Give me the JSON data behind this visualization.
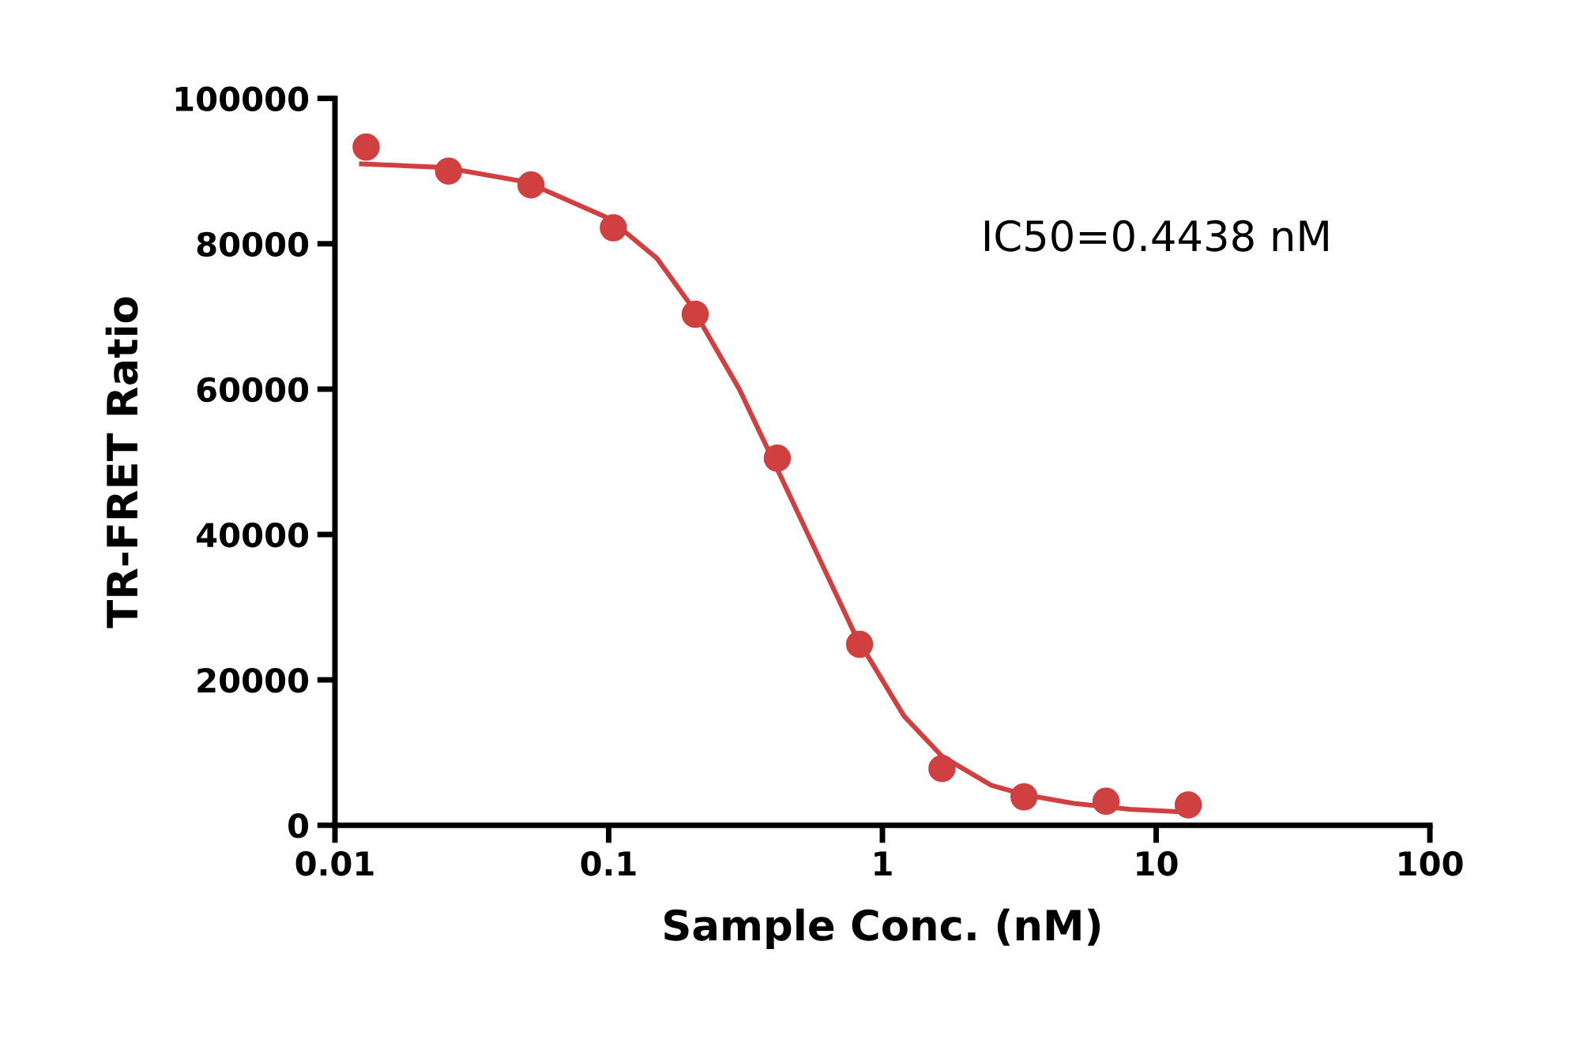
{
  "chart_data": {
    "type": "scatter",
    "xlabel": "Sample Conc. (nM)",
    "ylabel": "TR-FRET Ratio",
    "log": "x",
    "xlim": [
      0.01,
      100
    ],
    "xticks": [
      0.01,
      0.1,
      1,
      10,
      100
    ],
    "ylim": [
      0,
      100000
    ],
    "yticks": [
      0,
      20000,
      40000,
      60000,
      80000,
      100000
    ],
    "grid": false,
    "line_style": "solid",
    "series": [
      {
        "marker": "circle",
        "color": "#d04040",
        "x": [
          0.013,
          0.026,
          0.052,
          0.104,
          0.207,
          0.413,
          0.825,
          1.65,
          3.29,
          6.56,
          13.1
        ],
        "values": [
          93300,
          90000,
          88100,
          82200,
          70300,
          50500,
          24900,
          7800,
          3900,
          3300,
          2800
        ]
      },
      {
        "type": "line",
        "marker": "none",
        "color": "#d04040",
        "x": [
          0.0125,
          0.025,
          0.05,
          0.1,
          0.15,
          0.2,
          0.3,
          0.4438,
          0.6,
          0.8,
          1.2,
          1.65,
          2.5,
          3.3,
          5,
          8,
          13
        ],
        "values": [
          91000,
          90500,
          88500,
          83500,
          78000,
          71500,
          60000,
          46500,
          36000,
          26000,
          15000,
          9500,
          5500,
          4200,
          3000,
          2200,
          1800
        ]
      }
    ],
    "annotations": [
      "IC50=0.4438 nM"
    ]
  }
}
